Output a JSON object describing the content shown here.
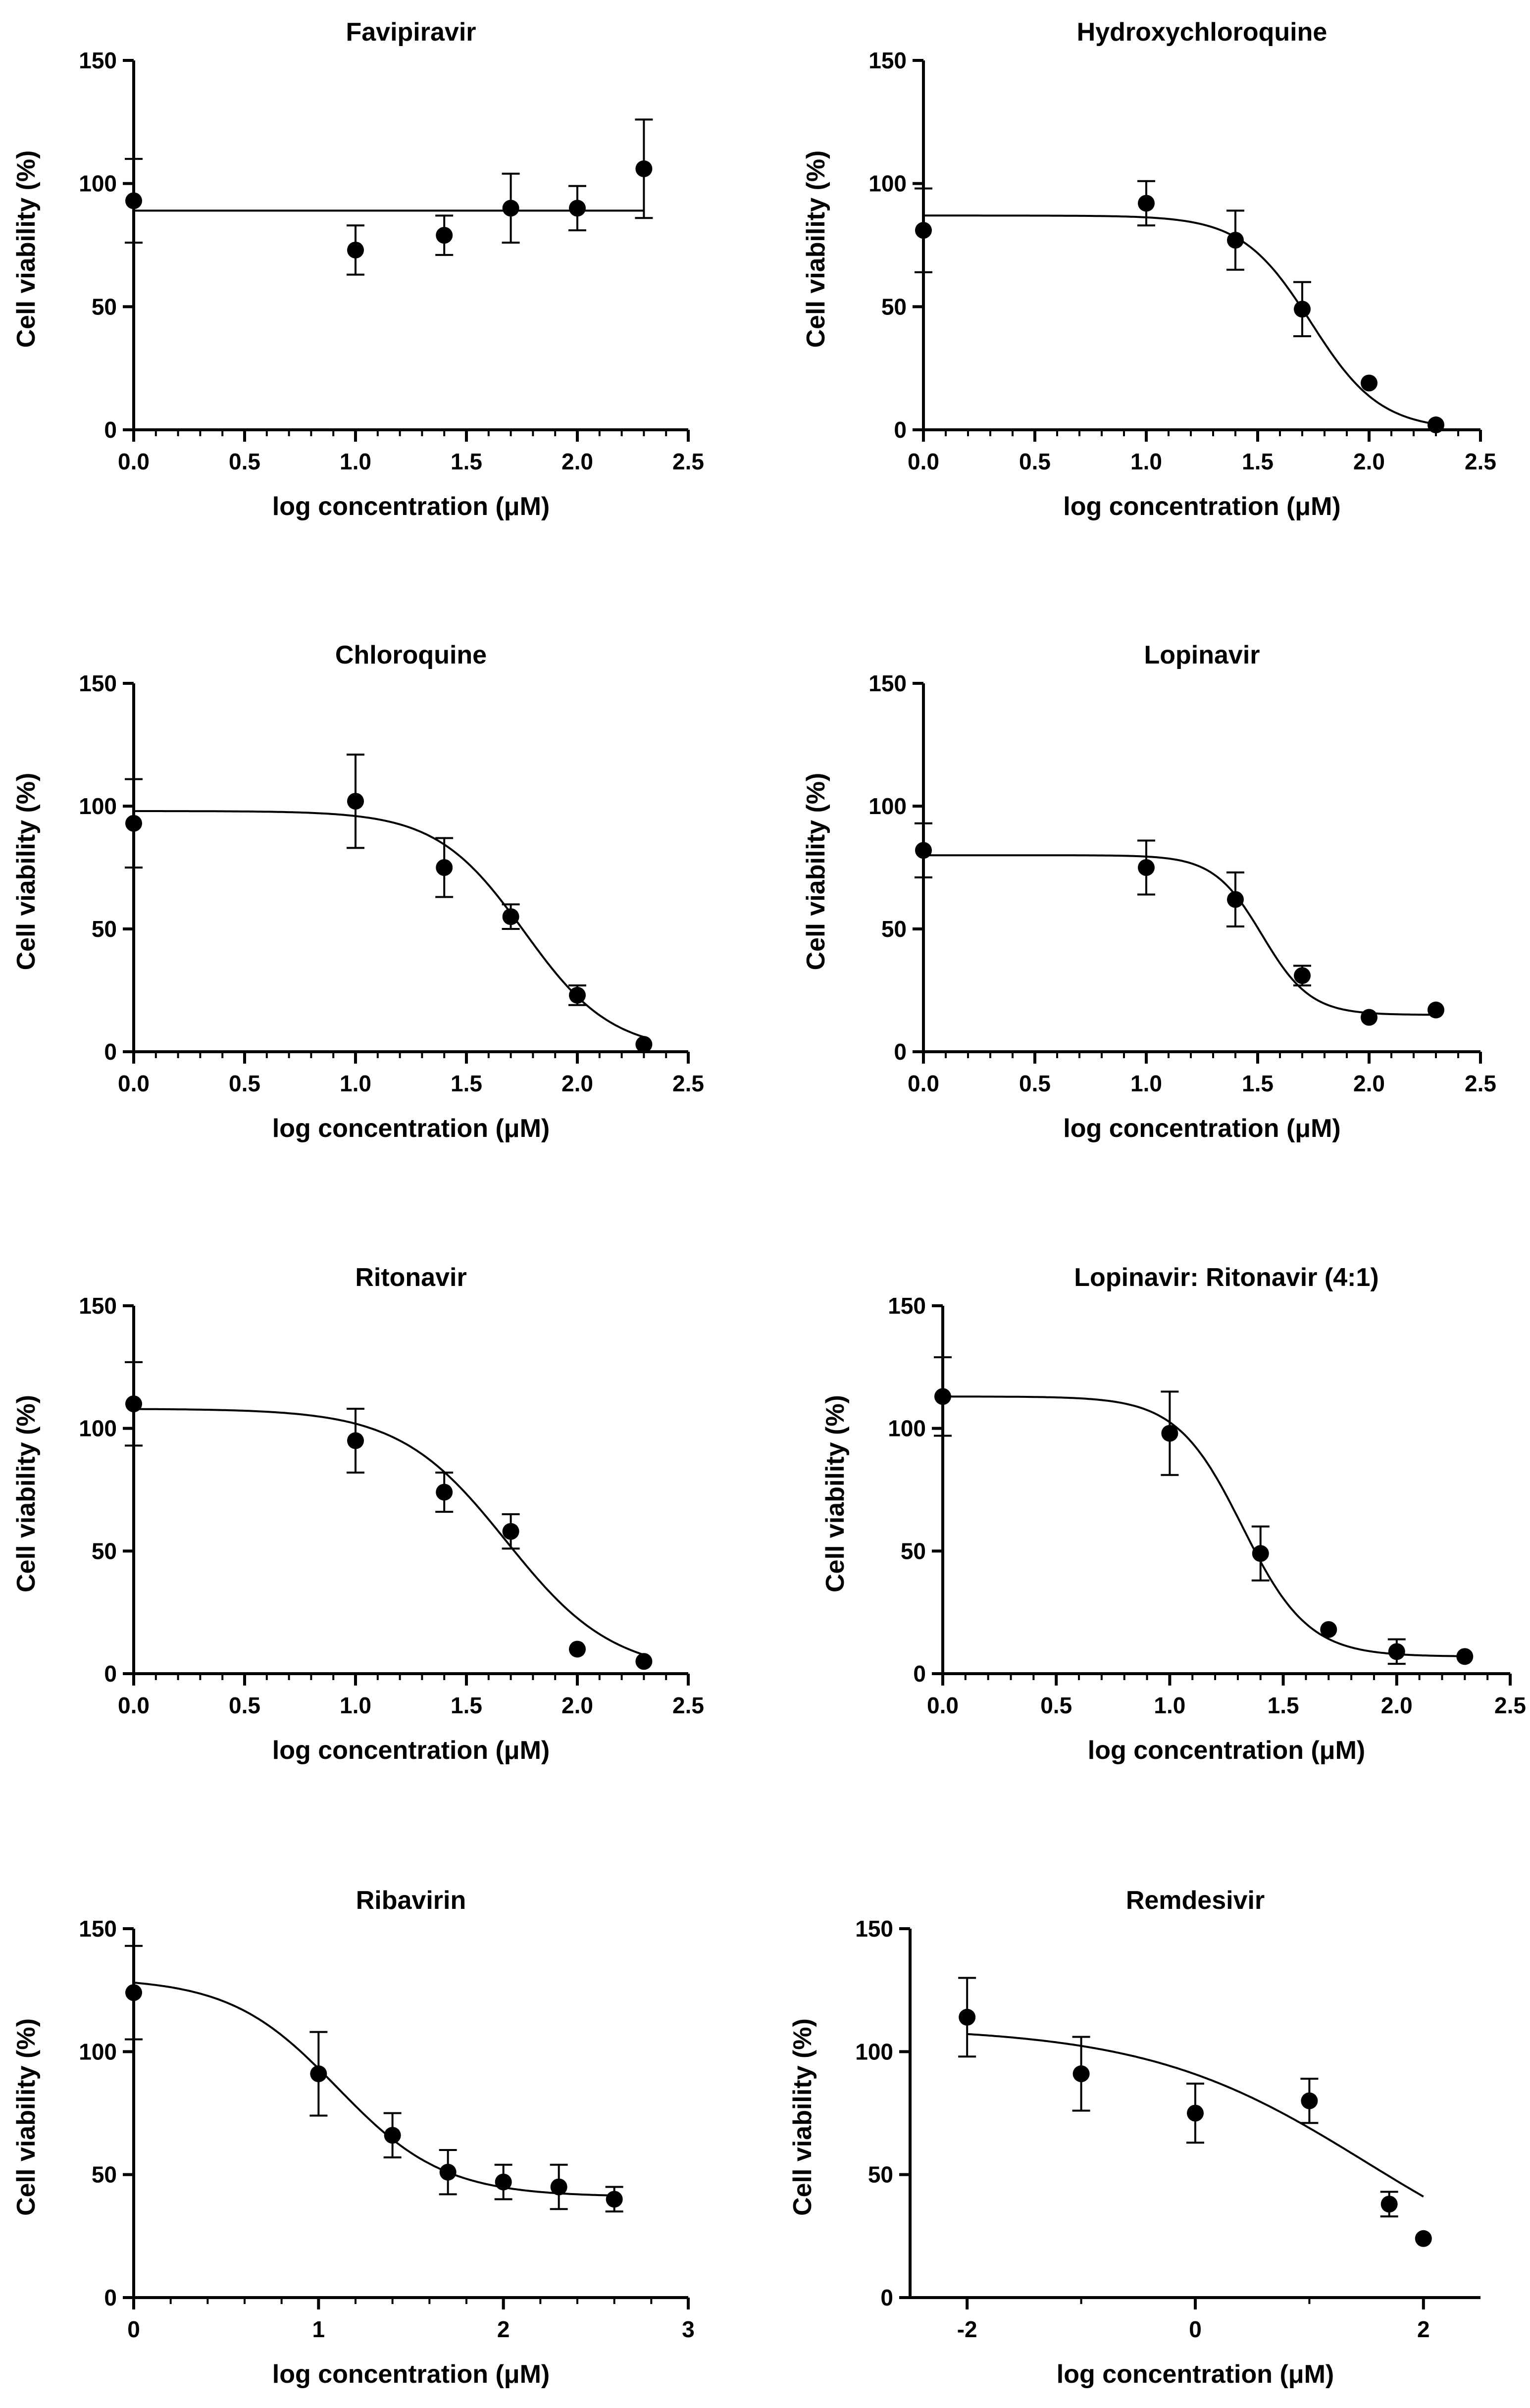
{
  "chart_data": [
    {
      "type": "scatter",
      "title": "Favipiravir",
      "xlabel": "log concentration (μM)",
      "ylabel": "Cell viability (%)",
      "xlim": [
        0,
        2.5
      ],
      "ylim": [
        0,
        150
      ],
      "xticks": [
        0,
        0.5,
        1,
        1.5,
        2,
        2.5
      ],
      "xticklabels": [
        "0.0",
        "0.5",
        "1.0",
        "1.5",
        "2.0",
        "2.5"
      ],
      "yticks": [
        0,
        50,
        100,
        150
      ],
      "yticklabels": [
        "0",
        "50",
        "100",
        "150"
      ],
      "minor_x_per_major": 5,
      "points": [
        {
          "x": 0,
          "y": 93,
          "err": 17
        },
        {
          "x": 1,
          "y": 73,
          "err": 10
        },
        {
          "x": 1.4,
          "y": 79,
          "err": 8
        },
        {
          "x": 1.7,
          "y": 90,
          "err": 14
        },
        {
          "x": 2,
          "y": 90,
          "err": 9
        },
        {
          "x": 2.3,
          "y": 106,
          "err": 20
        }
      ],
      "fit": {
        "model": "constant",
        "value": 89
      }
    },
    {
      "type": "scatter",
      "title": "Hydroxychloroquine",
      "xlabel": "log concentration (μM)",
      "ylabel": "Cell viability (%)",
      "xlim": [
        0,
        2.5
      ],
      "ylim": [
        0,
        150
      ],
      "xticks": [
        0,
        0.5,
        1,
        1.5,
        2,
        2.5
      ],
      "xticklabels": [
        "0.0",
        "0.5",
        "1.0",
        "1.5",
        "2.0",
        "2.5"
      ],
      "yticks": [
        0,
        50,
        100,
        150
      ],
      "yticklabels": [
        "0",
        "50",
        "100",
        "150"
      ],
      "minor_x_per_major": 5,
      "points": [
        {
          "x": 0,
          "y": 81,
          "err": 17
        },
        {
          "x": 1,
          "y": 92,
          "err": 9
        },
        {
          "x": 1.4,
          "y": 77,
          "err": 12
        },
        {
          "x": 1.7,
          "y": 49,
          "err": 11
        },
        {
          "x": 2,
          "y": 19,
          "err": 0
        },
        {
          "x": 2.3,
          "y": 2,
          "err": 0
        }
      ],
      "fit": {
        "model": "sigmoid",
        "top": 87,
        "bottom": 0,
        "logIC50": 1.74,
        "hill": 2.8
      }
    },
    {
      "type": "scatter",
      "title": "Chloroquine",
      "xlabel": "log concentration (μM)",
      "ylabel": "Cell viability (%)",
      "xlim": [
        0,
        2.5
      ],
      "ylim": [
        0,
        150
      ],
      "xticks": [
        0,
        0.5,
        1,
        1.5,
        2,
        2.5
      ],
      "xticklabels": [
        "0.0",
        "0.5",
        "1.0",
        "1.5",
        "2.0",
        "2.5"
      ],
      "yticks": [
        0,
        50,
        100,
        150
      ],
      "yticklabels": [
        "0",
        "50",
        "100",
        "150"
      ],
      "minor_x_per_major": 5,
      "points": [
        {
          "x": 0,
          "y": 93,
          "err": 18
        },
        {
          "x": 1,
          "y": 102,
          "err": 19
        },
        {
          "x": 1.4,
          "y": 75,
          "err": 12
        },
        {
          "x": 1.7,
          "y": 55,
          "err": 5
        },
        {
          "x": 2,
          "y": 23,
          "err": 4
        },
        {
          "x": 2.3,
          "y": 3,
          "err": 0
        }
      ],
      "fit": {
        "model": "sigmoid",
        "top": 98,
        "bottom": 0,
        "logIC50": 1.76,
        "hill": 2.2
      }
    },
    {
      "type": "scatter",
      "title": "Lopinavir",
      "xlabel": "log concentration (μM)",
      "ylabel": "Cell viability (%)",
      "xlim": [
        0,
        2.5
      ],
      "ylim": [
        0,
        150
      ],
      "xticks": [
        0,
        0.5,
        1,
        1.5,
        2,
        2.5
      ],
      "xticklabels": [
        "0.0",
        "0.5",
        "1.0",
        "1.5",
        "2.0",
        "2.5"
      ],
      "yticks": [
        0,
        50,
        100,
        150
      ],
      "yticklabels": [
        "0",
        "50",
        "100",
        "150"
      ],
      "minor_x_per_major": 5,
      "points": [
        {
          "x": 0,
          "y": 82,
          "err": 11
        },
        {
          "x": 1,
          "y": 75,
          "err": 11
        },
        {
          "x": 1.4,
          "y": 62,
          "err": 11
        },
        {
          "x": 1.7,
          "y": 31,
          "err": 4
        },
        {
          "x": 2,
          "y": 14,
          "err": 0
        },
        {
          "x": 2.3,
          "y": 17,
          "err": 0
        }
      ],
      "fit": {
        "model": "sigmoid",
        "top": 80,
        "bottom": 15,
        "logIC50": 1.52,
        "hill": 4.0
      }
    },
    {
      "type": "scatter",
      "title": "Ritonavir",
      "xlabel": "log concentration (μM)",
      "ylabel": "Cell viability (%)",
      "xlim": [
        0,
        2.5
      ],
      "ylim": [
        0,
        150
      ],
      "xticks": [
        0,
        0.5,
        1,
        1.5,
        2,
        2.5
      ],
      "xticklabels": [
        "0.0",
        "0.5",
        "1.0",
        "1.5",
        "2.0",
        "2.5"
      ],
      "yticks": [
        0,
        50,
        100,
        150
      ],
      "yticklabels": [
        "0",
        "50",
        "100",
        "150"
      ],
      "minor_x_per_major": 5,
      "points": [
        {
          "x": 0,
          "y": 110,
          "err": 17
        },
        {
          "x": 1,
          "y": 95,
          "err": 13
        },
        {
          "x": 1.4,
          "y": 74,
          "err": 8
        },
        {
          "x": 1.7,
          "y": 58,
          "err": 7
        },
        {
          "x": 2,
          "y": 10,
          "err": 0
        },
        {
          "x": 2.3,
          "y": 5,
          "err": 0
        }
      ],
      "fit": {
        "model": "sigmoid",
        "top": 108,
        "bottom": 0,
        "logIC50": 1.68,
        "hill": 1.8
      }
    },
    {
      "type": "scatter",
      "title": "Lopinavir: Ritonavir (4:1)",
      "xlabel": "log concentration (μM)",
      "ylabel": "Cell viability (%)",
      "xlim": [
        0,
        2.5
      ],
      "ylim": [
        0,
        150
      ],
      "xticks": [
        0,
        0.5,
        1,
        1.5,
        2,
        2.5
      ],
      "xticklabels": [
        "0.0",
        "0.5",
        "1.0",
        "1.5",
        "2.0",
        "2.5"
      ],
      "yticks": [
        0,
        50,
        100,
        150
      ],
      "yticklabels": [
        "0",
        "50",
        "100",
        "150"
      ],
      "minor_x_per_major": 5,
      "points": [
        {
          "x": 0,
          "y": 113,
          "err": 16
        },
        {
          "x": 1,
          "y": 98,
          "err": 17
        },
        {
          "x": 1.4,
          "y": 49,
          "err": 11
        },
        {
          "x": 1.7,
          "y": 18,
          "err": 0
        },
        {
          "x": 2,
          "y": 9,
          "err": 5
        },
        {
          "x": 2.3,
          "y": 7,
          "err": 0
        }
      ],
      "fit": {
        "model": "sigmoid",
        "top": 113,
        "bottom": 7,
        "logIC50": 1.32,
        "hill": 3.0
      }
    },
    {
      "type": "scatter",
      "title": "Ribavirin",
      "xlabel": "log concentration (μM)",
      "ylabel": "Cell viability (%)",
      "xlim": [
        0,
        3
      ],
      "ylim": [
        0,
        150
      ],
      "xticks": [
        0,
        1,
        2,
        3
      ],
      "xticklabels": [
        "0",
        "1",
        "2",
        "3"
      ],
      "yticks": [
        0,
        50,
        100,
        150
      ],
      "yticklabels": [
        "0",
        "50",
        "100",
        "150"
      ],
      "minor_x_per_major": 5,
      "points": [
        {
          "x": 0,
          "y": 124,
          "err": 19
        },
        {
          "x": 1,
          "y": 91,
          "err": 17
        },
        {
          "x": 1.4,
          "y": 66,
          "err": 9
        },
        {
          "x": 1.7,
          "y": 51,
          "err": 9
        },
        {
          "x": 2,
          "y": 47,
          "err": 7
        },
        {
          "x": 2.3,
          "y": 45,
          "err": 9
        },
        {
          "x": 2.6,
          "y": 40,
          "err": 5
        }
      ],
      "fit": {
        "model": "sigmoid",
        "top": 130,
        "bottom": 41,
        "logIC50": 1.1,
        "hill": 1.5
      }
    },
    {
      "type": "scatter",
      "title": "Remdesivir",
      "xlabel": "log concentration (μM)",
      "ylabel": "Cell viability (%)",
      "xlim": [
        -2.5,
        2.5
      ],
      "ylim": [
        0,
        150
      ],
      "xticks": [
        -2,
        0,
        2
      ],
      "xticklabels": [
        "-2",
        "0",
        "2"
      ],
      "yticks": [
        0,
        50,
        100,
        150
      ],
      "yticklabels": [
        "0",
        "50",
        "100",
        "150"
      ],
      "minor_x_per_major": 2,
      "points": [
        {
          "x": -2,
          "y": 114,
          "err": 16
        },
        {
          "x": -1,
          "y": 91,
          "err": 15
        },
        {
          "x": 0,
          "y": 75,
          "err": 12
        },
        {
          "x": 1,
          "y": 80,
          "err": 9
        },
        {
          "x": 1.7,
          "y": 38,
          "err": 5
        },
        {
          "x": 2,
          "y": 24,
          "err": 0
        }
      ],
      "fit": {
        "model": "sigmoid",
        "top": 110,
        "bottom": 0,
        "logIC50": 1.5,
        "hill": 0.45,
        "x_from": -2,
        "x_to": 2
      }
    }
  ]
}
